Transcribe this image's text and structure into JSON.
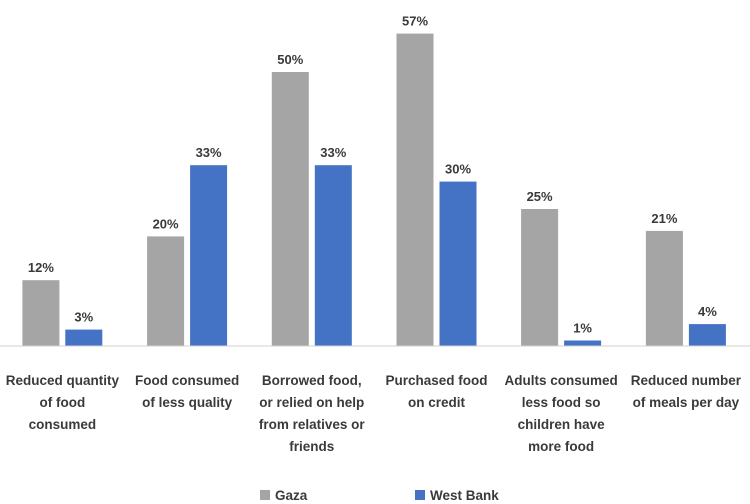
{
  "chart_data": {
    "type": "bar",
    "categories": [
      [
        "Reduced quantity",
        "of food",
        "consumed"
      ],
      [
        "Food consumed",
        "of less quality"
      ],
      [
        "Borrowed food,",
        "or relied on help",
        "from relatives or",
        "friends"
      ],
      [
        "Purchased food",
        "on credit"
      ],
      [
        "Adults consumed",
        "less food so",
        "children have",
        "more food"
      ],
      [
        "Reduced number",
        "of meals per day"
      ]
    ],
    "series": [
      {
        "name": "Gaza",
        "color": "#a5a5a5",
        "values": [
          12,
          20,
          50,
          57,
          25,
          21
        ],
        "labels": [
          "12%",
          "20%",
          "50%",
          "57%",
          "25%",
          "21%"
        ]
      },
      {
        "name": "West Bank",
        "color": "#4472c4",
        "values": [
          3,
          33,
          33,
          30,
          1,
          4
        ],
        "labels": [
          "3%",
          "33%",
          "33%",
          "30%",
          "1%",
          "4%"
        ]
      }
    ],
    "ylim": [
      0,
      60
    ],
    "unit": "%",
    "grid": false,
    "legend_position": "bottom",
    "title": "",
    "xlabel": "",
    "ylabel": ""
  }
}
